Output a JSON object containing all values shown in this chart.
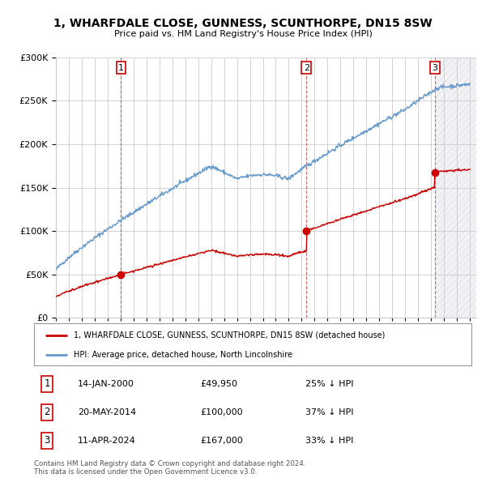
{
  "title": "1, WHARFDALE CLOSE, GUNNESS, SCUNTHORPE, DN15 8SW",
  "subtitle": "Price paid vs. HM Land Registry's House Price Index (HPI)",
  "legend_label_red": "1, WHARFDALE CLOSE, GUNNESS, SCUNTHORPE, DN15 8SW (detached house)",
  "legend_label_blue": "HPI: Average price, detached house, North Lincolnshire",
  "sale_labels": [
    "1",
    "2",
    "3"
  ],
  "sale_dates_label": [
    "14-JAN-2000",
    "20-MAY-2014",
    "11-APR-2024"
  ],
  "sale_prices_label": [
    "£49,950",
    "£100,000",
    "£167,000"
  ],
  "sale_hpi_label": [
    "25% ↓ HPI",
    "37% ↓ HPI",
    "33% ↓ HPI"
  ],
  "sale_years": [
    2000.04,
    2014.38,
    2024.28
  ],
  "sale_prices": [
    49950,
    100000,
    167000
  ],
  "footer": "Contains HM Land Registry data © Crown copyright and database right 2024.\nThis data is licensed under the Open Government Licence v3.0.",
  "ylim": [
    0,
    300000
  ],
  "yticks": [
    0,
    50000,
    100000,
    150000,
    200000,
    250000,
    300000
  ],
  "ytick_labels": [
    "£0",
    "£50K",
    "£100K",
    "£150K",
    "£200K",
    "£250K",
    "£300K"
  ],
  "xmin": 1995.0,
  "xmax": 2027.5,
  "color_red": "#cc0000",
  "color_blue": "#6699cc",
  "color_grid": "#cccccc",
  "color_bg": "#ffffff",
  "sale_vline_color": "#cc0000"
}
